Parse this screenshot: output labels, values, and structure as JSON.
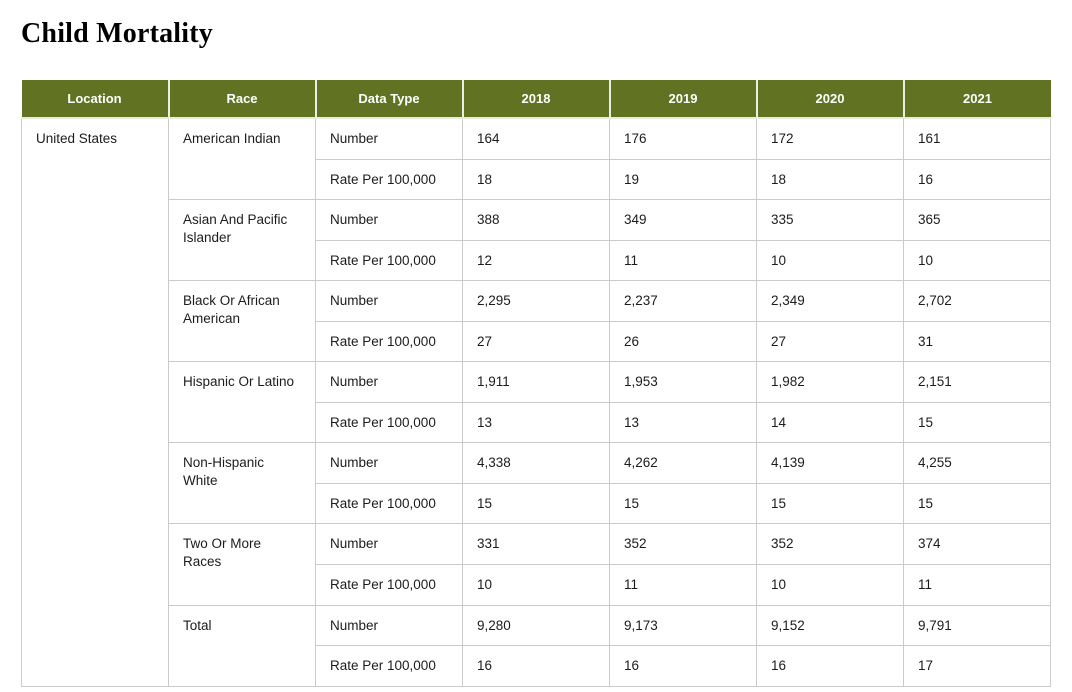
{
  "page_title": "Child Mortality",
  "colors": {
    "header_bg": "#617323",
    "header_text": "#ffffff",
    "cell_border": "#cbcbcb",
    "body_text": "#1c1c1c",
    "page_bg": "#ffffff"
  },
  "chart_data": {
    "type": "table",
    "title": "Child Mortality",
    "columns": [
      "Location",
      "Race",
      "Data Type",
      "2018",
      "2019",
      "2020",
      "2021"
    ],
    "location": "United States",
    "data_type_labels": {
      "number": "Number",
      "rate": "Rate Per 100,000"
    },
    "row_groups": [
      {
        "race": "American Indian",
        "number": [
          "164",
          "176",
          "172",
          "161"
        ],
        "rate": [
          "18",
          "19",
          "18",
          "16"
        ]
      },
      {
        "race": "Asian And Pacific Islander",
        "number": [
          "388",
          "349",
          "335",
          "365"
        ],
        "rate": [
          "12",
          "11",
          "10",
          "10"
        ]
      },
      {
        "race": "Black Or African American",
        "number": [
          "2,295",
          "2,237",
          "2,349",
          "2,702"
        ],
        "rate": [
          "27",
          "26",
          "27",
          "31"
        ]
      },
      {
        "race": "Hispanic Or Latino",
        "number": [
          "1,911",
          "1,953",
          "1,982",
          "2,151"
        ],
        "rate": [
          "13",
          "13",
          "14",
          "15"
        ]
      },
      {
        "race": "Non-Hispanic White",
        "number": [
          "4,338",
          "4,262",
          "4,139",
          "4,255"
        ],
        "rate": [
          "15",
          "15",
          "15",
          "15"
        ]
      },
      {
        "race": "Two Or More Races",
        "number": [
          "331",
          "352",
          "352",
          "374"
        ],
        "rate": [
          "10",
          "11",
          "10",
          "11"
        ]
      },
      {
        "race": "Total",
        "number": [
          "9,280",
          "9,173",
          "9,152",
          "9,791"
        ],
        "rate": [
          "16",
          "16",
          "16",
          "17"
        ]
      }
    ]
  }
}
